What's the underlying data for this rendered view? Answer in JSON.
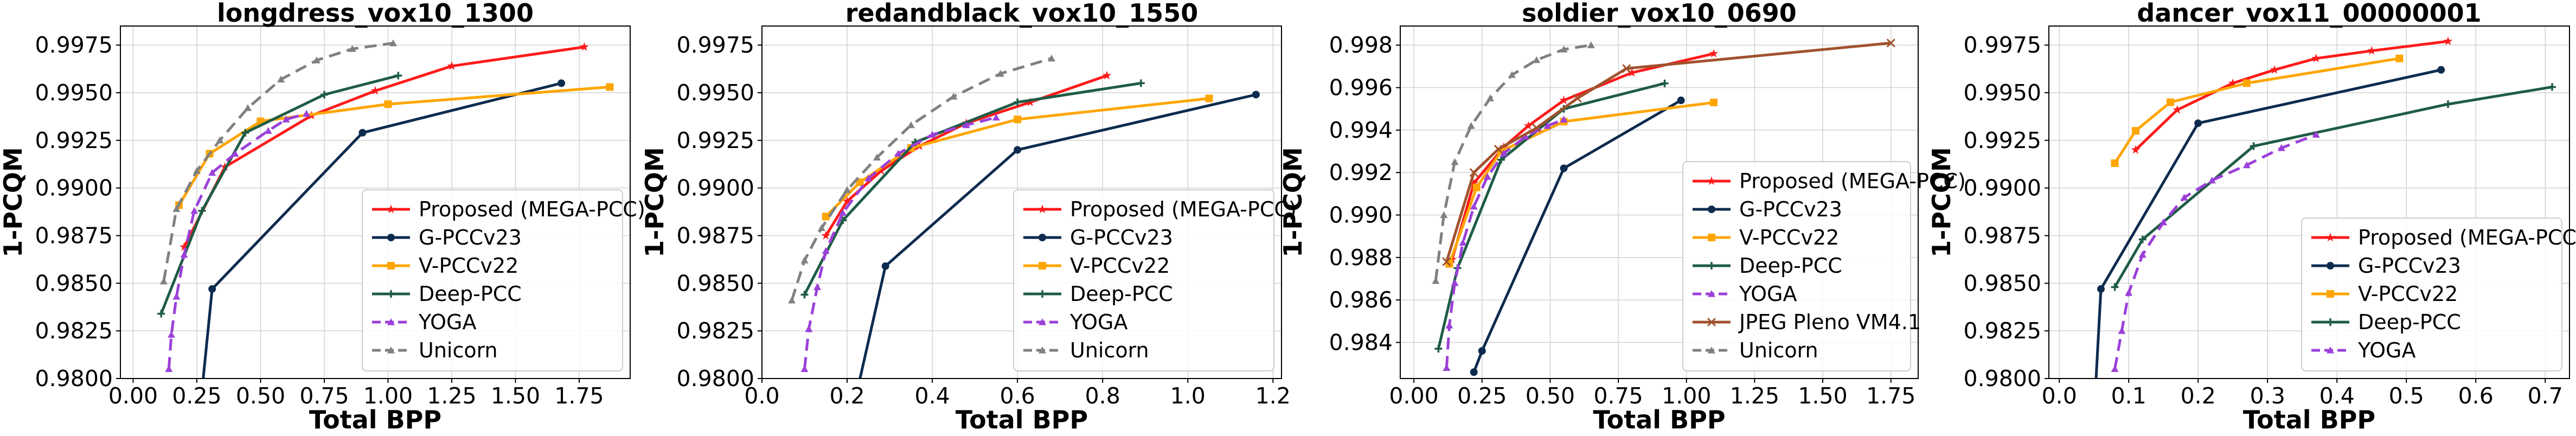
{
  "colors": {
    "Proposed (MEGA-PCC)": "#ff1a1a",
    "G-PCCv23": "#0d2b4e",
    "V-PCCv22": "#ffa500",
    "Deep-PCC": "#1f5c45",
    "YOGA": "#9b40d9",
    "Unicorn": "#808080",
    "JPEG Pleno VM4.1": "#a0522d"
  },
  "chart_data": [
    {
      "type": "line",
      "title": "longdress_vox10_1300",
      "xlabel": "Total BPP",
      "ylabel": "1-PCQM",
      "xlim": [
        -0.05,
        1.95
      ],
      "ylim": [
        0.98,
        0.9985
      ],
      "xticks": [
        "0.00",
        "0.25",
        "0.50",
        "0.75",
        "1.00",
        "1.25",
        "1.50",
        "1.75"
      ],
      "xtick_values": [
        0,
        0.25,
        0.5,
        0.75,
        1.0,
        1.25,
        1.5,
        1.75
      ],
      "yticks": [
        "0.9800",
        "0.9825",
        "0.9850",
        "0.9875",
        "0.9900",
        "0.9925",
        "0.9950",
        "0.9975"
      ],
      "ytick_values": [
        0.98,
        0.9825,
        0.985,
        0.9875,
        0.99,
        0.9925,
        0.995,
        0.9975
      ],
      "grid": true,
      "legend": "lower-right",
      "legend_items": [
        "Proposed (MEGA-PCC)",
        "G-PCCv23",
        "V-PCCv22",
        "Deep-PCC",
        "YOGA",
        "Unicorn"
      ],
      "series": [
        {
          "name": "Proposed (MEGA-PCC)",
          "x": [
            0.2,
            0.36,
            0.7,
            0.95,
            1.25,
            1.77
          ],
          "y": [
            0.9869,
            0.9911,
            0.9938,
            0.9951,
            0.9964,
            0.9974
          ]
        },
        {
          "name": "G-PCCv23",
          "x": [
            0.26,
            0.31,
            0.9,
            1.68
          ],
          "y": [
            0.978,
            0.9847,
            0.9929,
            0.9955
          ]
        },
        {
          "name": "V-PCCv22",
          "x": [
            0.18,
            0.3,
            0.5,
            1.0,
            1.87
          ],
          "y": [
            0.9891,
            0.9918,
            0.9935,
            0.9944,
            0.9953
          ]
        },
        {
          "name": "Deep-PCC",
          "x": [
            0.11,
            0.27,
            0.44,
            0.75,
            1.04
          ],
          "y": [
            0.9834,
            0.9888,
            0.9929,
            0.9949,
            0.9959
          ]
        },
        {
          "name": "YOGA",
          "x": [
            0.14,
            0.15,
            0.17,
            0.2,
            0.24,
            0.31,
            0.4,
            0.53,
            0.6,
            0.68
          ],
          "y": [
            0.9805,
            0.9823,
            0.9843,
            0.9865,
            0.9888,
            0.9908,
            0.9918,
            0.993,
            0.9936,
            0.9939
          ]
        },
        {
          "name": "Unicorn",
          "x": [
            0.12,
            0.17,
            0.25,
            0.34,
            0.45,
            0.58,
            0.72,
            0.86,
            1.02
          ],
          "y": [
            0.9851,
            0.9889,
            0.9909,
            0.9925,
            0.9942,
            0.9957,
            0.9967,
            0.9973,
            0.9976
          ]
        }
      ]
    },
    {
      "type": "line",
      "title": "redandblack_vox10_1550",
      "xlabel": "Total BPP",
      "ylabel": "1-PCQM",
      "xlim": [
        0.0,
        1.22
      ],
      "ylim": [
        0.98,
        0.9985
      ],
      "xticks": [
        "0.0",
        "0.2",
        "0.4",
        "0.6",
        "0.8",
        "1.0",
        "1.2"
      ],
      "xtick_values": [
        0,
        0.2,
        0.4,
        0.6,
        0.8,
        1.0,
        1.2
      ],
      "yticks": [
        "0.9800",
        "0.9825",
        "0.9850",
        "0.9875",
        "0.9900",
        "0.9925",
        "0.9950",
        "0.9975"
      ],
      "ytick_values": [
        0.98,
        0.9825,
        0.985,
        0.9875,
        0.99,
        0.9925,
        0.995,
        0.9975
      ],
      "grid": true,
      "legend": "lower-right",
      "legend_items": [
        "Proposed (MEGA-PCC)",
        "G-PCCv23",
        "V-PCCv22",
        "Deep-PCC",
        "YOGA",
        "Unicorn"
      ],
      "series": [
        {
          "name": "Proposed (MEGA-PCC)",
          "x": [
            0.15,
            0.2,
            0.28,
            0.37,
            0.48,
            0.63,
            0.81
          ],
          "y": [
            0.9875,
            0.9893,
            0.9909,
            0.9922,
            0.9934,
            0.9945,
            0.9959
          ]
        },
        {
          "name": "G-PCCv23",
          "x": [
            0.21,
            0.29,
            0.6,
            1.16
          ],
          "y": [
            0.978,
            0.9859,
            0.992,
            0.9949
          ]
        },
        {
          "name": "V-PCCv22",
          "x": [
            0.15,
            0.23,
            0.35,
            0.6,
            1.05
          ],
          "y": [
            0.9885,
            0.9903,
            0.9921,
            0.9936,
            0.9947
          ]
        },
        {
          "name": "Deep-PCC",
          "x": [
            0.1,
            0.19,
            0.36,
            0.6,
            0.89
          ],
          "y": [
            0.9844,
            0.9883,
            0.9924,
            0.9945,
            0.9955
          ]
        },
        {
          "name": "YOGA",
          "x": [
            0.1,
            0.11,
            0.13,
            0.15,
            0.19,
            0.25,
            0.32,
            0.4,
            0.48,
            0.55
          ],
          "y": [
            0.9805,
            0.9826,
            0.9848,
            0.9867,
            0.9887,
            0.9905,
            0.9918,
            0.9928,
            0.9933,
            0.9937
          ]
        },
        {
          "name": "Unicorn",
          "x": [
            0.07,
            0.1,
            0.14,
            0.2,
            0.27,
            0.35,
            0.45,
            0.56,
            0.68
          ],
          "y": [
            0.9841,
            0.9862,
            0.9879,
            0.9899,
            0.9916,
            0.9933,
            0.9948,
            0.996,
            0.9968
          ]
        }
      ]
    },
    {
      "type": "line",
      "title": "soldier_vox10_0690",
      "xlabel": "Total BPP",
      "ylabel": "1-PCQM",
      "xlim": [
        -0.05,
        1.85
      ],
      "ylim": [
        0.9823,
        0.9989
      ],
      "xticks": [
        "0.00",
        "0.25",
        "0.50",
        "0.75",
        "1.00",
        "1.25",
        "1.50",
        "1.75"
      ],
      "xtick_values": [
        0,
        0.25,
        0.5,
        0.75,
        1.0,
        1.25,
        1.5,
        1.75
      ],
      "yticks": [
        "0.984",
        "0.986",
        "0.988",
        "0.990",
        "0.992",
        "0.994",
        "0.996",
        "0.998"
      ],
      "ytick_values": [
        0.984,
        0.986,
        0.988,
        0.99,
        0.992,
        0.994,
        0.996,
        0.998
      ],
      "grid": true,
      "legend": "lower-right",
      "legend_items": [
        "Proposed (MEGA-PCC)",
        "G-PCCv23",
        "V-PCCv22",
        "Deep-PCC",
        "YOGA",
        "JPEG Pleno VM4.1",
        "Unicorn"
      ],
      "series": [
        {
          "name": "Proposed (MEGA-PCC)",
          "x": [
            0.14,
            0.22,
            0.33,
            0.42,
            0.55,
            0.8,
            1.1
          ],
          "y": [
            0.9879,
            0.9915,
            0.9932,
            0.9942,
            0.9954,
            0.9967,
            0.9976
          ]
        },
        {
          "name": "G-PCCv23",
          "x": [
            0.22,
            0.25,
            0.55,
            0.98
          ],
          "y": [
            0.9826,
            0.9836,
            0.9922,
            0.9954
          ]
        },
        {
          "name": "V-PCCv22",
          "x": [
            0.13,
            0.23,
            0.32,
            0.55,
            1.1
          ],
          "y": [
            0.9877,
            0.9913,
            0.993,
            0.9944,
            0.9953
          ]
        },
        {
          "name": "Deep-PCC",
          "x": [
            0.09,
            0.16,
            0.32,
            0.55,
            0.92
          ],
          "y": [
            0.9837,
            0.9875,
            0.9926,
            0.995,
            0.9962
          ]
        },
        {
          "name": "YOGA",
          "x": [
            0.12,
            0.13,
            0.15,
            0.18,
            0.22,
            0.27,
            0.33,
            0.41,
            0.49,
            0.55
          ],
          "y": [
            0.9828,
            0.9848,
            0.9868,
            0.9887,
            0.9904,
            0.9918,
            0.9929,
            0.9937,
            0.9942,
            0.9945
          ]
        },
        {
          "name": "JPEG Pleno VM4.1",
          "x": [
            0.12,
            0.22,
            0.31,
            0.45,
            0.6,
            0.78,
            1.75
          ],
          "y": [
            0.9878,
            0.992,
            0.9931,
            0.9941,
            0.9955,
            0.9969,
            0.9981
          ]
        },
        {
          "name": "Unicorn",
          "x": [
            0.08,
            0.11,
            0.15,
            0.21,
            0.28,
            0.36,
            0.45,
            0.55,
            0.65
          ],
          "y": [
            0.9869,
            0.99,
            0.9925,
            0.9942,
            0.9955,
            0.9966,
            0.9973,
            0.9978,
            0.998
          ]
        }
      ]
    },
    {
      "type": "line",
      "title": "dancer_vox11_00000001",
      "xlabel": "Total BPP",
      "ylabel": "1-PCQM",
      "xlim": [
        -0.015,
        0.735
      ],
      "ylim": [
        0.98,
        0.9985
      ],
      "xticks": [
        "0.0",
        "0.1",
        "0.2",
        "0.3",
        "0.4",
        "0.5",
        "0.6",
        "0.7"
      ],
      "xtick_values": [
        0,
        0.1,
        0.2,
        0.3,
        0.4,
        0.5,
        0.6,
        0.7
      ],
      "yticks": [
        "0.9800",
        "0.9825",
        "0.9850",
        "0.9875",
        "0.9900",
        "0.9925",
        "0.9950",
        "0.9975"
      ],
      "ytick_values": [
        0.98,
        0.9825,
        0.985,
        0.9875,
        0.99,
        0.9925,
        0.995,
        0.9975
      ],
      "grid": true,
      "legend": "lower-right",
      "legend_items": [
        "Proposed (MEGA-PCC)",
        "G-PCCv23",
        "V-PCCv22",
        "Deep-PCC",
        "YOGA"
      ],
      "series": [
        {
          "name": "Proposed (MEGA-PCC)",
          "x": [
            0.11,
            0.17,
            0.25,
            0.31,
            0.37,
            0.45,
            0.56
          ],
          "y": [
            0.992,
            0.9941,
            0.9955,
            0.9962,
            0.9968,
            0.9972,
            0.9977
          ]
        },
        {
          "name": "G-PCCv23",
          "x": [
            0.05,
            0.06,
            0.2,
            0.55
          ],
          "y": [
            0.978,
            0.9847,
            0.9934,
            0.9962
          ]
        },
        {
          "name": "V-PCCv22",
          "x": [
            0.08,
            0.11,
            0.16,
            0.27,
            0.49
          ],
          "y": [
            0.9913,
            0.993,
            0.9945,
            0.9955,
            0.9968
          ]
        },
        {
          "name": "Deep-PCC",
          "x": [
            0.08,
            0.12,
            0.28,
            0.56,
            0.71
          ],
          "y": [
            0.9848,
            0.9873,
            0.9922,
            0.9944,
            0.9953
          ]
        },
        {
          "name": "YOGA",
          "x": [
            0.08,
            0.09,
            0.1,
            0.12,
            0.15,
            0.18,
            0.22,
            0.27,
            0.32,
            0.37
          ],
          "y": [
            0.9805,
            0.9825,
            0.9845,
            0.9865,
            0.9882,
            0.9895,
            0.9904,
            0.9912,
            0.9921,
            0.9928
          ]
        }
      ]
    }
  ]
}
